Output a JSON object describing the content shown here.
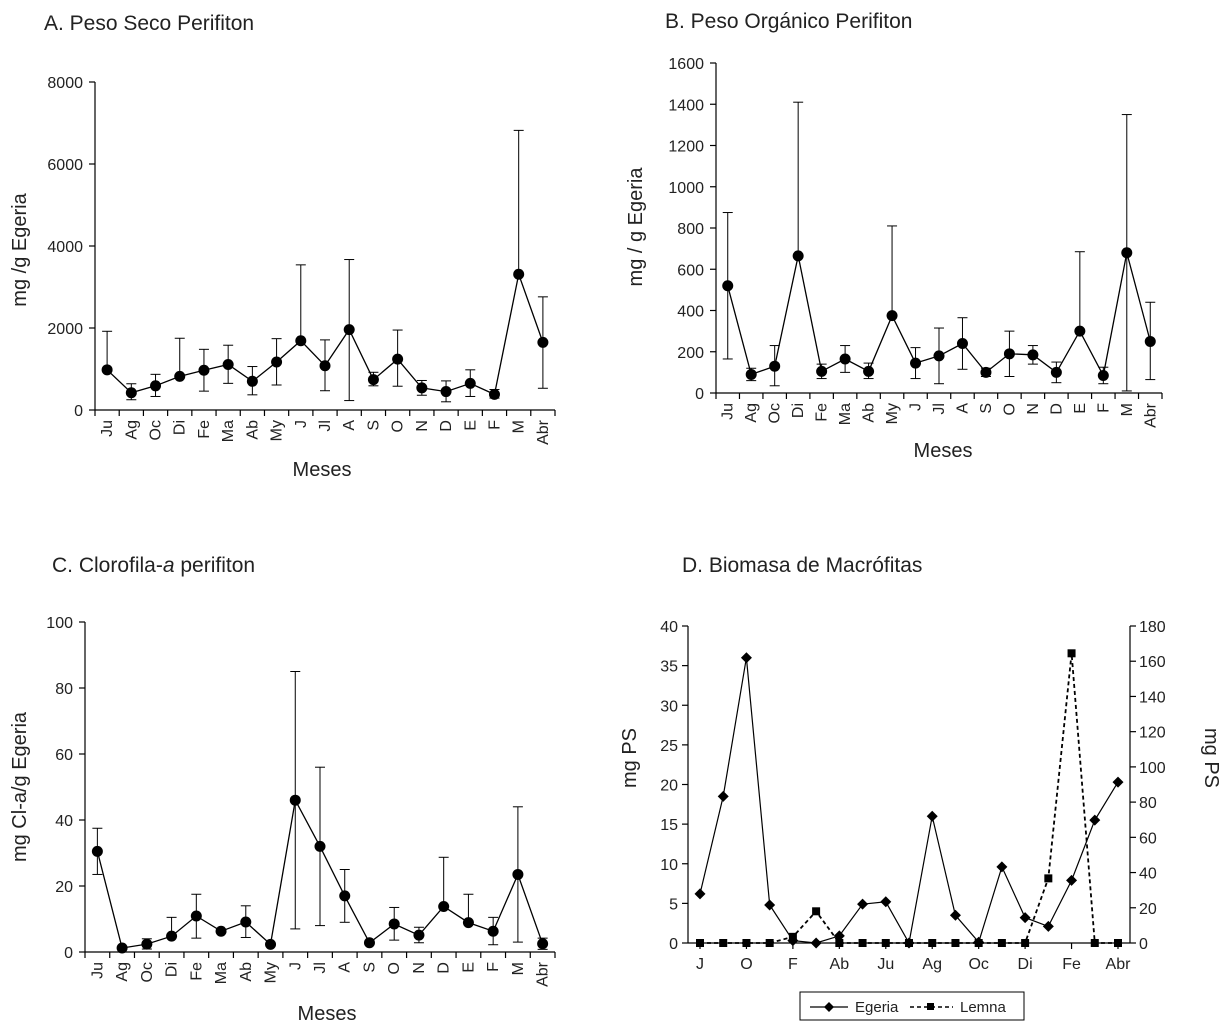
{
  "chart_data": [
    {
      "id": "A",
      "type": "line",
      "title": "A. Peso Seco Perifiton",
      "xlabel": "Meses",
      "ylabel": "mg /g Egeria",
      "ylim": [
        0,
        8000
      ],
      "yticks": [
        0,
        2000,
        4000,
        6000,
        8000
      ],
      "categories": [
        "Ju",
        "Ag",
        "Oc",
        "Di",
        "Fe",
        "Ma",
        "Ab",
        "My",
        "J",
        "Jl",
        "A",
        "S",
        "O",
        "N",
        "D",
        "E",
        "F",
        "M",
        "Abr"
      ],
      "series": [
        {
          "values": [
            980,
            420,
            590,
            820,
            970,
            1110,
            700,
            1170,
            1690,
            1080,
            1960,
            740,
            1240,
            540,
            450,
            650,
            380,
            3310,
            1650
          ],
          "err_high": [
            1920,
            640,
            870,
            1750,
            1480,
            1580,
            1060,
            1740,
            3540,
            1710,
            3670,
            920,
            1950,
            720,
            710,
            980,
            500,
            6820,
            2760
          ],
          "err_low": [
            980,
            250,
            330,
            820,
            460,
            650,
            370,
            610,
            1690,
            470,
            230,
            590,
            580,
            360,
            200,
            330,
            290,
            3310,
            530
          ]
        }
      ]
    },
    {
      "id": "B",
      "type": "line",
      "title": "B. Peso Orgánico Perifiton",
      "xlabel": "Meses",
      "ylabel": "mg / g Egeria",
      "ylim": [
        0,
        1600
      ],
      "yticks": [
        0,
        200,
        400,
        600,
        800,
        1000,
        1200,
        1400,
        1600
      ],
      "categories": [
        "Ju",
        "Ag",
        "Oc",
        "Di",
        "Fe",
        "Ma",
        "Ab",
        "My",
        "J",
        "Jl",
        "A",
        "S",
        "O",
        "N",
        "D",
        "E",
        "F",
        "M",
        "Abr"
      ],
      "series": [
        {
          "values": [
            520,
            90,
            130,
            665,
            105,
            165,
            105,
            375,
            145,
            180,
            240,
            100,
            190,
            185,
            100,
            300,
            85,
            680,
            250
          ],
          "err_high": [
            875,
            120,
            230,
            1410,
            140,
            230,
            145,
            810,
            220,
            315,
            365,
            120,
            300,
            230,
            150,
            685,
            125,
            1350,
            440
          ],
          "err_low": [
            165,
            60,
            35,
            665,
            70,
            100,
            70,
            375,
            70,
            45,
            115,
            80,
            80,
            140,
            50,
            300,
            45,
            10,
            65
          ]
        }
      ]
    },
    {
      "id": "C",
      "type": "line",
      "title_parts": [
        "C. Clorofila-",
        "a",
        " perifiton"
      ],
      "xlabel": "Meses",
      "ylabel": "mg Cl-a/g Egeria",
      "ylim": [
        0,
        100
      ],
      "yticks": [
        0,
        20,
        40,
        60,
        80,
        100
      ],
      "categories": [
        "Ju",
        "Ag",
        "Oc",
        "Di",
        "Fe",
        "Ma",
        "Ab",
        "My",
        "J",
        "Jl",
        "A",
        "S",
        "O",
        "N",
        "D",
        "E",
        "F",
        "M",
        "Abr"
      ],
      "series": [
        {
          "values": [
            30.5,
            1.2,
            2.4,
            4.8,
            10.9,
            6.3,
            9.1,
            2.3,
            46,
            32,
            17,
            2.8,
            8.5,
            5.1,
            13.8,
            8.9,
            6.3,
            23.5,
            2.5
          ],
          "err_high": [
            37.5,
            1.5,
            4,
            10.5,
            17.5,
            6.5,
            14,
            2.5,
            85,
            56,
            25,
            3.2,
            13.5,
            7.5,
            28.7,
            17.5,
            10.5,
            44,
            4.2
          ],
          "err_low": [
            23.5,
            0.9,
            0.9,
            4.8,
            4.2,
            6,
            4.4,
            2.1,
            7,
            8,
            9,
            2.4,
            3.6,
            2.8,
            13.8,
            8.9,
            2.2,
            3,
            0.8
          ]
        }
      ]
    },
    {
      "id": "D",
      "type": "line",
      "title": "D. Biomasa de Macrófitas",
      "ylabel_left": "mg PS",
      "ylabel_right": "mg PS",
      "ylim_left": [
        0,
        40
      ],
      "ylim_right": [
        0,
        180
      ],
      "yticks_left": [
        0,
        5,
        10,
        15,
        20,
        25,
        30,
        35,
        40
      ],
      "yticks_right": [
        0,
        20,
        40,
        60,
        80,
        100,
        120,
        140,
        160,
        180
      ],
      "x_count": 19,
      "x_tick_labels": [
        {
          "index": 0,
          "label": "J"
        },
        {
          "index": 2,
          "label": "O"
        },
        {
          "index": 4,
          "label": "F"
        },
        {
          "index": 6,
          "label": "Ab"
        },
        {
          "index": 8,
          "label": "Ju"
        },
        {
          "index": 10,
          "label": "Ag"
        },
        {
          "index": 12,
          "label": "Oc"
        },
        {
          "index": 14,
          "label": "Di"
        },
        {
          "index": 16,
          "label": "Fe"
        },
        {
          "index": 18,
          "label": "Abr"
        }
      ],
      "series": [
        {
          "name": "Egeria",
          "axis": "left",
          "marker": "diamond",
          "style": "solid",
          "values": [
            6.2,
            18.5,
            36,
            4.8,
            0.3,
            0,
            0.9,
            4.9,
            5.2,
            0,
            16,
            3.5,
            0.1,
            9.6,
            3.2,
            2.1,
            7.9,
            15.5,
            20.3
          ]
        },
        {
          "name": "Lemna",
          "axis": "right",
          "marker": "square",
          "style": "dotted",
          "values": [
            0,
            0,
            0,
            0,
            3.5,
            18,
            0,
            0,
            0,
            0,
            0,
            0,
            0,
            0,
            0,
            36.7,
            164.5,
            0,
            0
          ]
        }
      ],
      "legend_position": "bottom"
    }
  ]
}
